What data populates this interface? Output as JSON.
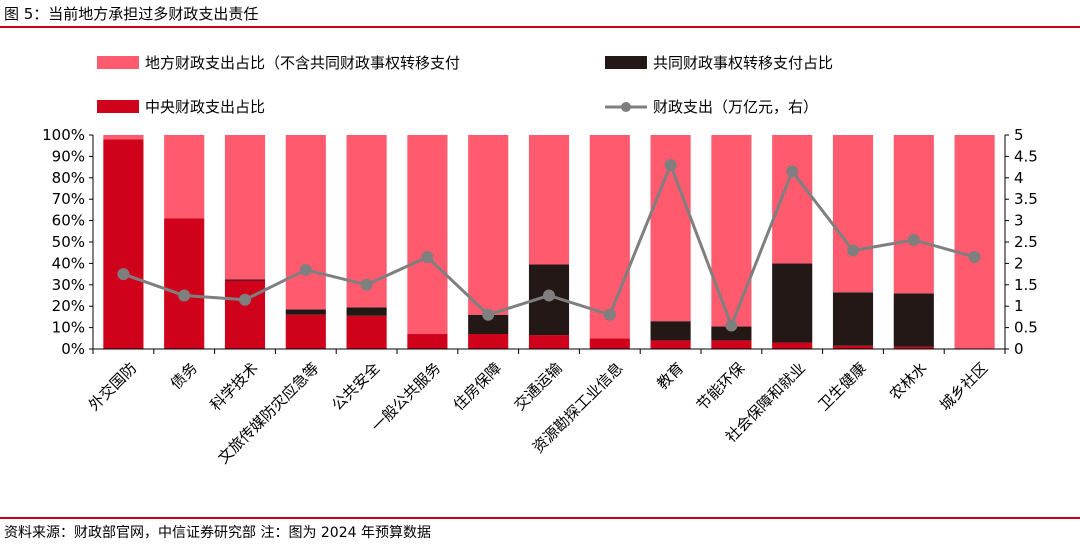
{
  "figure": {
    "title": "图 5：当前地方承担过多财政支出责任",
    "source": "资料来源：财政部官网，中信证券研究部 注：图为 2024 年预算数据"
  },
  "colors": {
    "local": "#ff5a6e",
    "shared": "#231816",
    "central": "#d0021b",
    "line": "#7f7f7f",
    "rule": "#c8001e"
  },
  "chart_data": {
    "type": "bar",
    "stacked": true,
    "title": "",
    "categories": [
      "外交国防",
      "债务",
      "科学技术",
      "文旅传媒防灾应急等",
      "公共安全",
      "一般公共服务",
      "住房保障",
      "交通运输",
      "资源勘探工业信息",
      "教育",
      "节能环保",
      "社会保障和就业",
      "卫生健康",
      "农林水",
      "城乡社区"
    ],
    "series": [
      {
        "name": "中央财政支出占比",
        "kind": "bar",
        "axis": "left",
        "values": [
          0.98,
          0.61,
          0.32,
          0.16,
          0.155,
          0.07,
          0.07,
          0.065,
          0.05,
          0.04,
          0.04,
          0.03,
          0.015,
          0.01,
          0.0
        ]
      },
      {
        "name": "共同财政事权转移支付占比",
        "kind": "bar",
        "axis": "left",
        "values": [
          0.0,
          0.0,
          0.005,
          0.025,
          0.04,
          0.0,
          0.09,
          0.33,
          0.0,
          0.09,
          0.065,
          0.37,
          0.25,
          0.25,
          0.0
        ]
      },
      {
        "name": "地方财政支出占比（不含共同财政事权转移支付）",
        "kind": "bar",
        "axis": "left",
        "values": [
          0.02,
          0.39,
          0.675,
          0.815,
          0.805,
          0.93,
          0.84,
          0.605,
          0.95,
          0.87,
          0.895,
          0.6,
          0.735,
          0.74,
          1.0
        ]
      },
      {
        "name": "财政支出（万亿元，右）",
        "kind": "line",
        "axis": "right",
        "values": [
          1.75,
          1.25,
          1.15,
          1.85,
          1.5,
          2.15,
          0.8,
          1.25,
          0.8,
          4.3,
          0.55,
          4.15,
          2.3,
          2.55,
          2.15
        ]
      }
    ],
    "yleft": {
      "ylim": [
        0,
        1
      ],
      "ticks": [
        "0%",
        "10%",
        "20%",
        "30%",
        "40%",
        "50%",
        "60%",
        "70%",
        "80%",
        "90%",
        "100%"
      ]
    },
    "yright": {
      "ylim": [
        0,
        5
      ],
      "ticks": [
        "0",
        "0.5",
        "1",
        "1.5",
        "2",
        "2.5",
        "3",
        "3.5",
        "4",
        "4.5",
        "5"
      ]
    },
    "legend": {
      "placement": "top",
      "items": [
        {
          "label": "地方财政支出占比（不含共同财政事权转移支付",
          "series": 2,
          "kind": "bar"
        },
        {
          "label": "共同财政事权转移支付占比",
          "series": 1,
          "kind": "bar"
        },
        {
          "label": "中央财政支出占比",
          "series": 0,
          "kind": "bar"
        },
        {
          "label": "财政支出（万亿元，右）",
          "series": 3,
          "kind": "line"
        }
      ]
    },
    "grid": false
  }
}
